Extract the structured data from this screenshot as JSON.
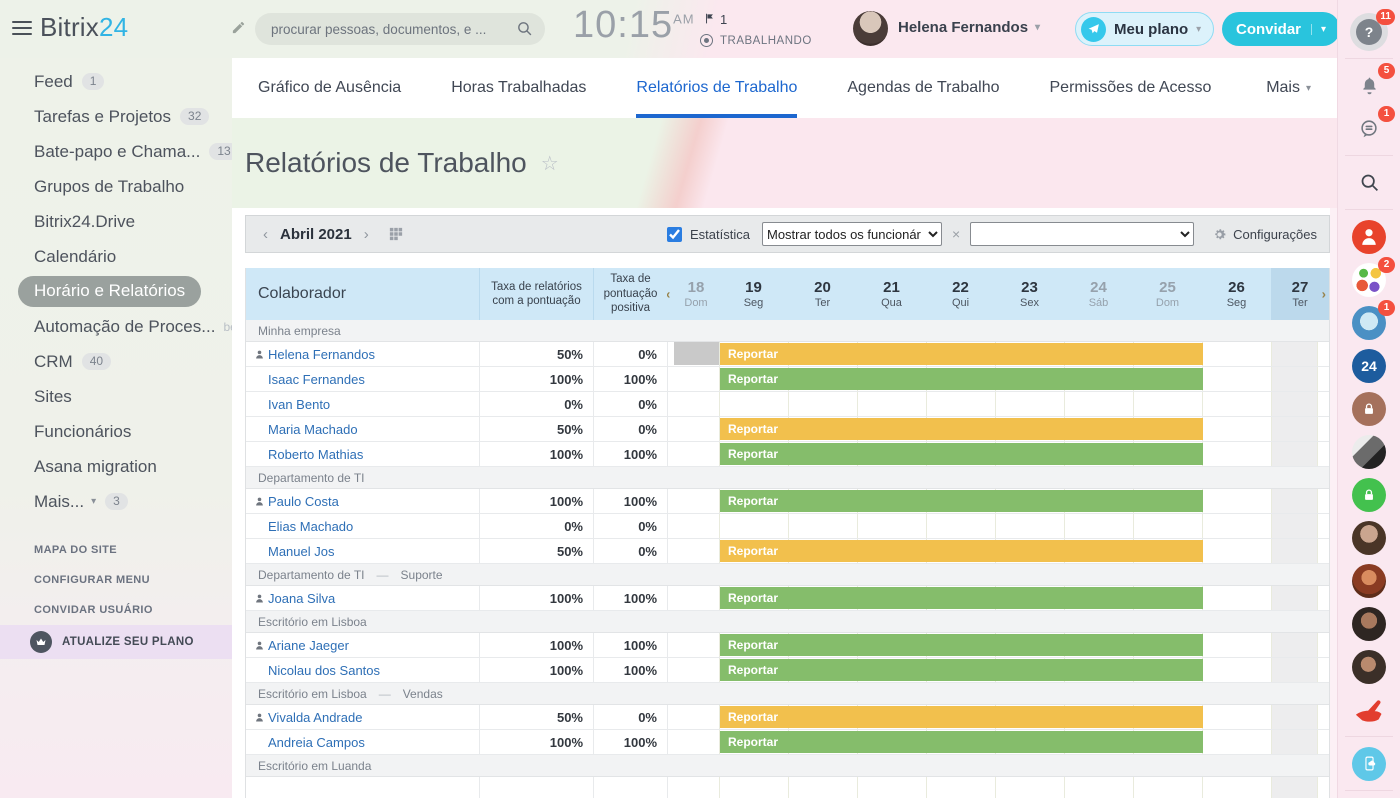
{
  "colors": {
    "accent_blue": "#1d67cf",
    "bar_yellow": "#f2c04d",
    "bar_green": "#85bd6b",
    "header_blue": "#cfe8f7",
    "today_blue": "#bcd9ec",
    "invite_teal": "#29c4dd",
    "badge_red": "#f4503f"
  },
  "topbar": {
    "logo_part1": "Bitrix",
    "logo_part2": "24",
    "search_placeholder": "procurar pessoas, documentos, e ...",
    "time": "10:15",
    "meridiem": "AM",
    "flag_count": "1",
    "status": "TRABALHANDO",
    "user_name": "Helena Fernandos",
    "plan_label": "Meu plano",
    "invite_label": "Convidar"
  },
  "sidebar": {
    "items": [
      {
        "id": "feed",
        "label": "Feed",
        "badge": "1"
      },
      {
        "id": "tasks",
        "label": "Tarefas e Projetos",
        "badge": "32"
      },
      {
        "id": "chat",
        "label": "Bate-papo e Chama...",
        "badge": "13"
      },
      {
        "id": "workgroups",
        "label": "Grupos de Trabalho"
      },
      {
        "id": "drive",
        "label": "Bitrix24.Drive"
      },
      {
        "id": "calendar",
        "label": "Calendário"
      },
      {
        "id": "time-reports",
        "label": "Horário e Relatórios",
        "selected": true
      },
      {
        "id": "automation",
        "label": "Automação de Proces...",
        "beta": "beta"
      },
      {
        "id": "crm",
        "label": "CRM",
        "badge": "40"
      },
      {
        "id": "sites",
        "label": "Sites"
      },
      {
        "id": "employees",
        "label": "Funcionários"
      },
      {
        "id": "asana",
        "label": "Asana migration"
      },
      {
        "id": "more",
        "label": "Mais...",
        "caret": true,
        "badge": "3"
      }
    ],
    "footer_links": [
      {
        "id": "sitemap",
        "label": "MAPA DO SITE"
      },
      {
        "id": "configure-menu",
        "label": "CONFIGURAR MENU"
      },
      {
        "id": "invite-user",
        "label": "CONVIDAR USUÁRIO"
      }
    ],
    "upgrade_label": "ATUALIZE SEU PLANO"
  },
  "tabs": {
    "items": [
      {
        "id": "absence-chart",
        "label": "Gráfico de Ausência"
      },
      {
        "id": "worked-hours",
        "label": "Horas Trabalhadas"
      },
      {
        "id": "work-reports",
        "label": "Relatórios de Trabalho",
        "active": true
      },
      {
        "id": "work-schedules",
        "label": "Agendas de Trabalho"
      },
      {
        "id": "access-permissions",
        "label": "Permissões de Acesso"
      }
    ],
    "more_label": "Mais"
  },
  "page": {
    "title": "Relatórios de Trabalho"
  },
  "toolbar": {
    "month": "Abril 2021",
    "prev_glyph": "‹",
    "next_glyph": "›",
    "statistics_label": "Estatística",
    "filter_value": "Mostrar todos os funcionár",
    "clear_glyph": "×",
    "settings_label": "Configurações"
  },
  "table": {
    "col_employee": "Colaborador",
    "col_rate1": "Taxa de relatórios com a pontuação",
    "col_rate2": "Taxa de pontuação positiva",
    "group_separator": "—",
    "bar_label": "Reportar",
    "days": [
      {
        "d": "18",
        "w": "Dom",
        "muted": true
      },
      {
        "d": "19",
        "w": "Seg"
      },
      {
        "d": "20",
        "w": "Ter"
      },
      {
        "d": "21",
        "w": "Qua"
      },
      {
        "d": "22",
        "w": "Qui"
      },
      {
        "d": "23",
        "w": "Sex"
      },
      {
        "d": "24",
        "w": "Sáb",
        "muted": true
      },
      {
        "d": "25",
        "w": "Dom",
        "muted": true
      },
      {
        "d": "26",
        "w": "Seg"
      },
      {
        "d": "27",
        "w": "Ter",
        "today": true
      }
    ],
    "groups": [
      {
        "label": "Minha empresa",
        "rows": [
          {
            "name": "Helena Fernandos",
            "head": true,
            "rate1": "50%",
            "rate2": "0%",
            "bar": "yellow",
            "gray18": true
          },
          {
            "name": "Isaac Fernandes",
            "rate1": "100%",
            "rate2": "100%",
            "bar": "green"
          },
          {
            "name": "Ivan Bento",
            "rate1": "0%",
            "rate2": "0%",
            "bar": "none"
          },
          {
            "name": "Maria Machado",
            "rate1": "50%",
            "rate2": "0%",
            "bar": "yellow"
          },
          {
            "name": "Roberto Mathias",
            "rate1": "100%",
            "rate2": "100%",
            "bar": "green"
          }
        ]
      },
      {
        "label": "Departamento de TI",
        "rows": [
          {
            "name": "Paulo Costa",
            "head": true,
            "rate1": "100%",
            "rate2": "100%",
            "bar": "green"
          },
          {
            "name": "Elias Machado",
            "rate1": "0%",
            "rate2": "0%",
            "bar": "none"
          },
          {
            "name": "Manuel Jos",
            "rate1": "50%",
            "rate2": "0%",
            "bar": "yellow"
          }
        ]
      },
      {
        "label": "Departamento de TI",
        "sub": "Suporte",
        "rows": [
          {
            "name": "Joana Silva",
            "head": true,
            "rate1": "100%",
            "rate2": "100%",
            "bar": "green"
          }
        ]
      },
      {
        "label": "Escritório em Lisboa",
        "rows": [
          {
            "name": "Ariane Jaeger",
            "head": true,
            "rate1": "100%",
            "rate2": "100%",
            "bar": "green"
          },
          {
            "name": "Nicolau dos Santos",
            "rate1": "100%",
            "rate2": "100%",
            "bar": "green"
          }
        ]
      },
      {
        "label": "Escritório em Lisboa",
        "sub": "Vendas",
        "rows": [
          {
            "name": "Vivalda Andrade",
            "head": true,
            "rate1": "50%",
            "rate2": "0%",
            "bar": "yellow"
          },
          {
            "name": "Andreia Campos",
            "rate1": "100%",
            "rate2": "100%",
            "bar": "green"
          }
        ]
      },
      {
        "label": "Escritório em Luanda",
        "rows": [
          {
            "name": "",
            "rate1": "",
            "rate2": "",
            "bar": "none"
          }
        ]
      }
    ]
  },
  "rail": {
    "items": [
      {
        "name": "help-icon",
        "kind": "help",
        "glyph": "?",
        "badge": "11"
      },
      {
        "divider": true
      },
      {
        "name": "notifications-bell-icon",
        "kind": "bell",
        "badge": "5"
      },
      {
        "name": "messenger-chat-icon",
        "kind": "chat",
        "badge": "1"
      },
      {
        "divider": true
      },
      {
        "name": "search-icon",
        "kind": "search"
      },
      {
        "divider": true
      },
      {
        "name": "employee-person-icon",
        "kind": "person"
      },
      {
        "name": "stickers-avatar-icon",
        "kind": "emoji",
        "badge": "2"
      },
      {
        "name": "user-avatar-icon",
        "kind": "photo-blue",
        "badge": "1"
      },
      {
        "name": "bitrix24-badge-icon",
        "kind": "b24",
        "glyph": "24"
      },
      {
        "name": "lock-icon",
        "kind": "lock-brown"
      },
      {
        "name": "user-avatar-icon",
        "kind": "photo-bw"
      },
      {
        "name": "lock-icon",
        "kind": "lock-green"
      },
      {
        "name": "user-avatar-icon",
        "kind": "photo-1"
      },
      {
        "name": "user-avatar-icon",
        "kind": "photo-2"
      },
      {
        "name": "user-avatar-icon",
        "kind": "photo-3"
      },
      {
        "name": "user-avatar-icon",
        "kind": "photo-4"
      },
      {
        "name": "hand-glove-icon",
        "kind": "hand"
      },
      {
        "divider": true
      },
      {
        "name": "mobile-app-icon",
        "kind": "tablet"
      },
      {
        "divider": true
      },
      {
        "name": "telephony-phone-icon",
        "kind": "phone"
      }
    ]
  }
}
